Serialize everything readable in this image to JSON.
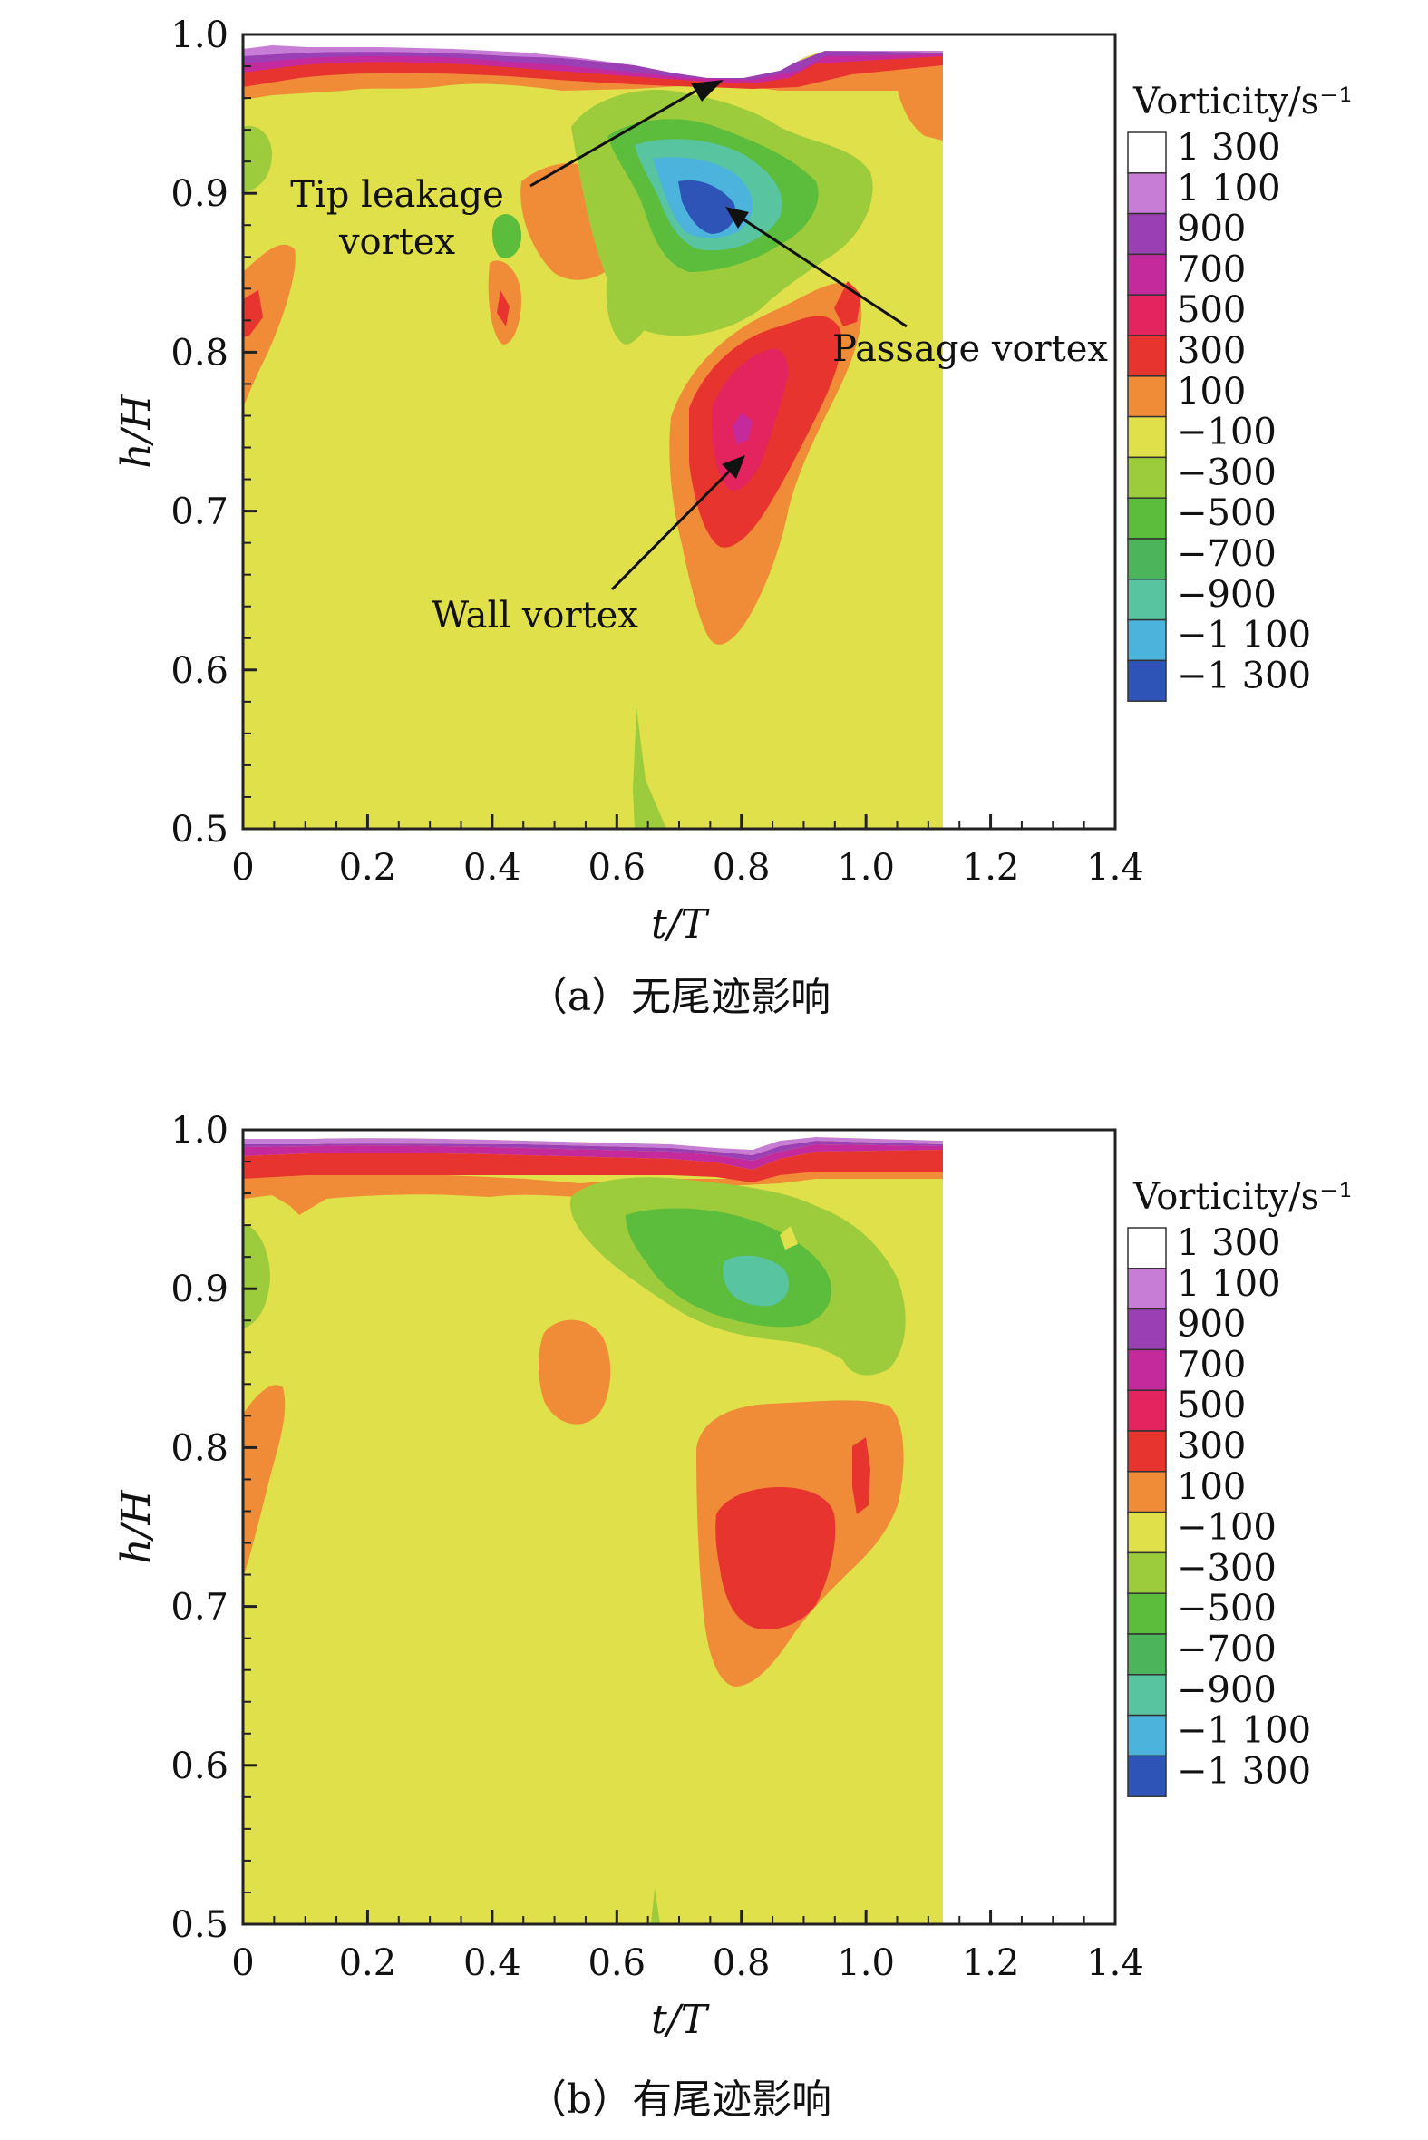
{
  "chart_data": [
    {
      "type": "heatmap",
      "caption": "（a）无尾迹影响",
      "xlabel": "t/T",
      "ylabel": "h/H",
      "xlim": [
        0,
        1.4
      ],
      "ylim": [
        0.5,
        1.0
      ],
      "x_ticks": [
        "0",
        "0.2",
        "0.4",
        "0.6",
        "0.8",
        "1.0",
        "1.2",
        "1.4"
      ],
      "y_ticks": [
        "0.5",
        "0.6",
        "0.7",
        "0.8",
        "0.9",
        "1.0"
      ],
      "data_extent_x": [
        0,
        1.13
      ],
      "legend": {
        "title": "Vorticity/s⁻¹",
        "levels": [
          "1 300",
          "1 100",
          "900",
          "700",
          "500",
          "300",
          "100",
          "−100",
          "−300",
          "−500",
          "−700",
          "−900",
          "−1 100",
          "−1 300"
        ],
        "colors": [
          "#ffffff",
          "#c77cd6",
          "#9b3fb5",
          "#c42a9c",
          "#e3245e",
          "#e8342e",
          "#f08c38",
          "#e0e04a",
          "#9ccc3c",
          "#5cbc3c",
          "#4cb45a",
          "#58c4a0",
          "#4cb4dc",
          "#2f54b8"
        ]
      },
      "annotations": [
        {
          "text": "Tip leakage vortex",
          "line1": "Tip leakage",
          "line2": "vortex",
          "target": [
            0.76,
            0.96
          ]
        },
        {
          "text": "Passage vortex",
          "target": [
            0.79,
            0.89
          ]
        },
        {
          "text": "Wall vortex",
          "target": [
            0.8,
            0.74
          ]
        }
      ],
      "features": [
        {
          "name": "tip-leakage-vortex",
          "x": 0.76,
          "y": 0.96,
          "value": 1300
        },
        {
          "name": "passage-vortex",
          "x": 0.79,
          "y": 0.89,
          "value": -1300
        },
        {
          "name": "wall-vortex",
          "x": 0.8,
          "y": 0.75,
          "value": 800
        }
      ]
    },
    {
      "type": "heatmap",
      "caption": "（b）有尾迹影响",
      "xlabel": "t/T",
      "ylabel": "h/H",
      "xlim": [
        0,
        1.4
      ],
      "ylim": [
        0.5,
        1.0
      ],
      "x_ticks": [
        "0",
        "0.2",
        "0.4",
        "0.6",
        "0.8",
        "1.0",
        "1.2",
        "1.4"
      ],
      "y_ticks": [
        "0.5",
        "0.6",
        "0.7",
        "0.8",
        "0.9",
        "1.0"
      ],
      "data_extent_x": [
        0,
        1.13
      ],
      "legend": {
        "title": "Vorticity/s⁻¹",
        "levels": [
          "1 300",
          "1 100",
          "900",
          "700",
          "500",
          "300",
          "100",
          "−100",
          "−300",
          "−500",
          "−700",
          "−900",
          "−1 100",
          "−1 300"
        ],
        "colors": [
          "#ffffff",
          "#c77cd6",
          "#9b3fb5",
          "#c42a9c",
          "#e3245e",
          "#e8342e",
          "#f08c38",
          "#e0e04a",
          "#9ccc3c",
          "#5cbc3c",
          "#4cb45a",
          "#58c4a0",
          "#4cb4dc",
          "#2f54b8"
        ]
      },
      "features": [
        {
          "name": "passage-vortex",
          "x": 0.82,
          "y": 0.88,
          "value": -800
        },
        {
          "name": "wall-vortex",
          "x": 0.85,
          "y": 0.72,
          "value": 400
        }
      ]
    }
  ]
}
